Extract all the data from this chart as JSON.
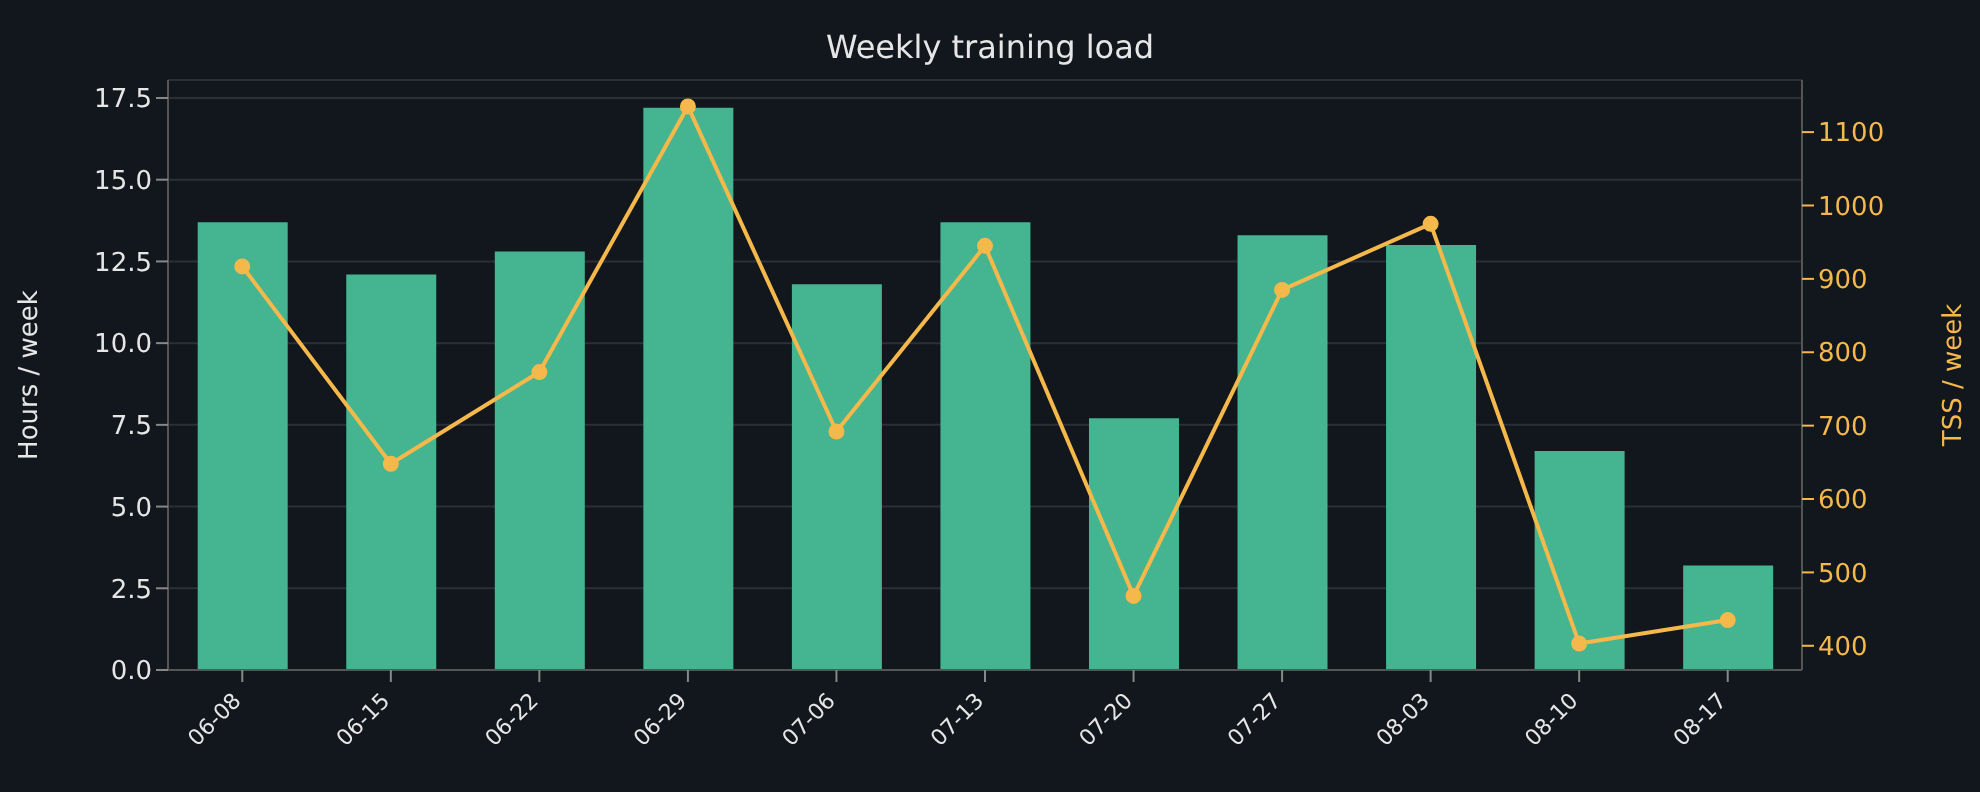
{
  "chart_data": {
    "type": "bar",
    "title": "Weekly training load",
    "ylabel": "Hours / week",
    "y2label": "TSS / week",
    "categories": [
      "06-08",
      "06-15",
      "06-22",
      "06-29",
      "07-06",
      "07-13",
      "07-20",
      "07-27",
      "08-03",
      "08-10",
      "08-17"
    ],
    "series": [
      {
        "color": "#44b590",
        "values": [
          13.7,
          12.1,
          12.8,
          17.2,
          11.8,
          13.7,
          7.7,
          13.3,
          13.0,
          6.7,
          3.2
        ]
      },
      {
        "type": "line",
        "axis": "y2",
        "color": "#f5b84a",
        "marker": "circle",
        "values": [
          917,
          648,
          773,
          1135,
          692,
          945,
          468,
          885,
          975,
          403,
          435
        ]
      }
    ],
    "ylim": [
      0,
      18.05
    ],
    "yticks": [
      {
        "value": 0,
        "label": "0.0"
      },
      2.5,
      {
        "value": 5,
        "label": "5.0"
      },
      7.5,
      {
        "value": 10,
        "label": "10.0"
      },
      12.5,
      {
        "value": 15,
        "label": "15.0"
      },
      17.5
    ],
    "y2lim": [
      367,
      1171
    ],
    "y2ticks": [
      400,
      500,
      600,
      700,
      800,
      900,
      1000,
      1100
    ],
    "grid": "y",
    "legend": false
  }
}
